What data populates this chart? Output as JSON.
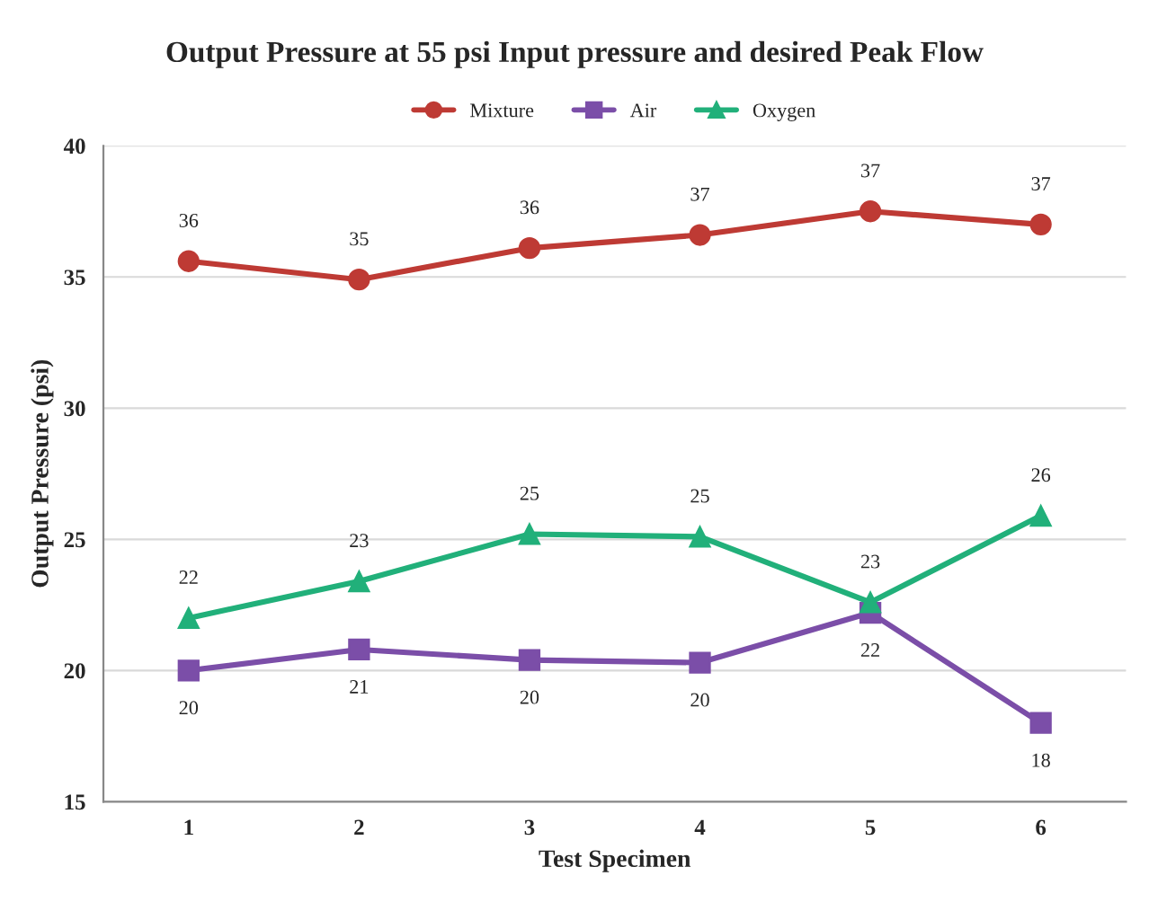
{
  "chart_data": {
    "type": "line",
    "title": "Output Pressure at 55 psi Input pressure and desired Peak Flow",
    "xlabel": "Test Specimen",
    "ylabel": "Output Pressure (psi)",
    "categories": [
      "1",
      "2",
      "3",
      "4",
      "5",
      "6"
    ],
    "series": [
      {
        "name": "Mixture",
        "color": "#be3a34",
        "marker": "circle",
        "values": [
          35.6,
          34.9,
          36.1,
          36.6,
          37.5,
          37.0
        ],
        "value_labels": [
          "36",
          "35",
          "36",
          "37",
          "37",
          "37"
        ]
      },
      {
        "name": "Air",
        "color": "#7b4ea8",
        "marker": "square",
        "values": [
          20.0,
          20.8,
          20.4,
          20.3,
          22.2,
          18.0
        ],
        "value_labels": [
          "20",
          "21",
          "20",
          "20",
          "22",
          "18"
        ]
      },
      {
        "name": "Oxygen",
        "color": "#21b07a",
        "marker": "triangle",
        "values": [
          22.0,
          23.4,
          25.2,
          25.1,
          22.6,
          25.9
        ],
        "value_labels": [
          "22",
          "23",
          "25",
          "25",
          "23",
          "26"
        ]
      }
    ],
    "ylim": [
      15,
      40
    ],
    "yticks": [
      15,
      20,
      25,
      30,
      35,
      40
    ],
    "grid": "y",
    "legend": "top",
    "line_style": "solid"
  }
}
